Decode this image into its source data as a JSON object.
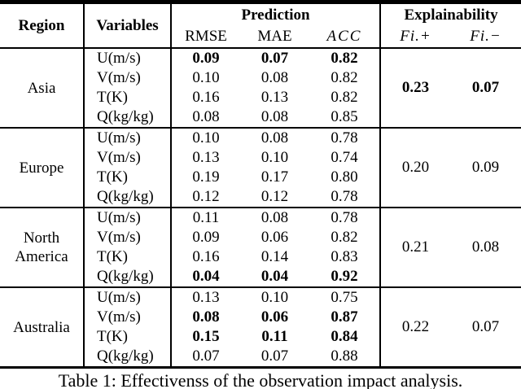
{
  "table": {
    "header": {
      "region": "Region",
      "variables": "Variables",
      "prediction": "Prediction",
      "explainability": "Explainability",
      "rmse": "RMSE",
      "mae": "MAE",
      "acc": "ACC",
      "fi_plus": "Fi.+",
      "fi_minus": "Fi.−"
    },
    "groups": [
      {
        "region": "Asia",
        "fi_plus": "0.23",
        "fi_minus": "0.07",
        "fi_bold": true,
        "rows": [
          {
            "variable": "U(m/s)",
            "rmse": "0.09",
            "mae": "0.07",
            "acc": "0.82",
            "bold": true
          },
          {
            "variable": "V(m/s)",
            "rmse": "0.10",
            "mae": "0.08",
            "acc": "0.82",
            "bold": false
          },
          {
            "variable": "T(K)",
            "rmse": "0.16",
            "mae": "0.13",
            "acc": "0.82",
            "bold": false
          },
          {
            "variable": "Q(kg/kg)",
            "rmse": "0.08",
            "mae": "0.08",
            "acc": "0.85",
            "bold": false
          }
        ]
      },
      {
        "region": "Europe",
        "fi_plus": "0.20",
        "fi_minus": "0.09",
        "fi_bold": false,
        "rows": [
          {
            "variable": "U(m/s)",
            "rmse": "0.10",
            "mae": "0.08",
            "acc": "0.78",
            "bold": false
          },
          {
            "variable": "V(m/s)",
            "rmse": "0.13",
            "mae": "0.10",
            "acc": "0.74",
            "bold": false
          },
          {
            "variable": "T(K)",
            "rmse": "0.19",
            "mae": "0.17",
            "acc": "0.80",
            "bold": false
          },
          {
            "variable": "Q(kg/kg)",
            "rmse": "0.12",
            "mae": "0.12",
            "acc": "0.78",
            "bold": false
          }
        ]
      },
      {
        "region": "North America",
        "fi_plus": "0.21",
        "fi_minus": "0.08",
        "fi_bold": false,
        "rows": [
          {
            "variable": "U(m/s)",
            "rmse": "0.11",
            "mae": "0.08",
            "acc": "0.78",
            "bold": false
          },
          {
            "variable": "V(m/s)",
            "rmse": "0.09",
            "mae": "0.06",
            "acc": "0.82",
            "bold": false
          },
          {
            "variable": "T(K)",
            "rmse": "0.16",
            "mae": "0.14",
            "acc": "0.83",
            "bold": false
          },
          {
            "variable": "Q(kg/kg)",
            "rmse": "0.04",
            "mae": "0.04",
            "acc": "0.92",
            "bold": true
          }
        ]
      },
      {
        "region": "Australia",
        "fi_plus": "0.22",
        "fi_minus": "0.07",
        "fi_bold": false,
        "rows": [
          {
            "variable": "U(m/s)",
            "rmse": "0.13",
            "mae": "0.10",
            "acc": "0.75",
            "bold": false
          },
          {
            "variable": "V(m/s)",
            "rmse": "0.08",
            "mae": "0.06",
            "acc": "0.87",
            "bold": true
          },
          {
            "variable": "T(K)",
            "rmse": "0.15",
            "mae": "0.11",
            "acc": "0.84",
            "bold": true
          },
          {
            "variable": "Q(kg/kg)",
            "rmse": "0.07",
            "mae": "0.07",
            "acc": "0.88",
            "bold": false
          }
        ]
      }
    ]
  },
  "caption": "Table 1: Effectivenss of the observation impact analysis.",
  "colors": {
    "text": "#000000",
    "background": "#ffffff",
    "rule": "#000000"
  }
}
